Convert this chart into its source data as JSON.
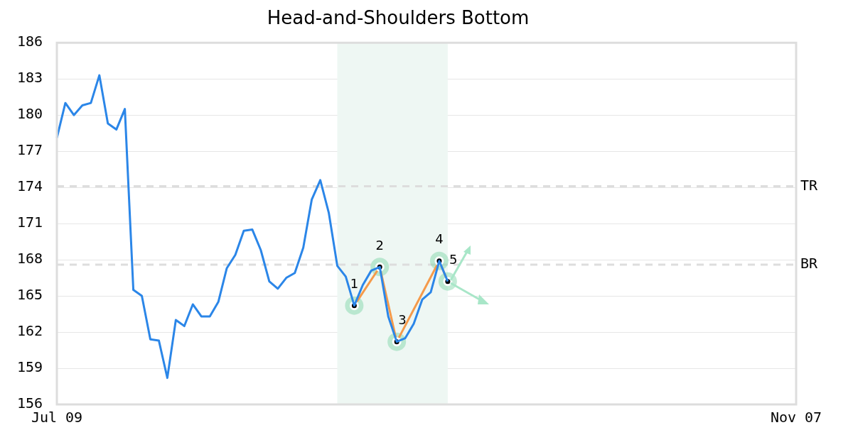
{
  "chart_data": {
    "type": "line",
    "title": "Head-and-Shoulders Bottom",
    "categories": [
      "Jul 09",
      null,
      null,
      null,
      null,
      null,
      null,
      null,
      null,
      null,
      null,
      null,
      null,
      null,
      null,
      null,
      null,
      null,
      null,
      null,
      null,
      null,
      null,
      null,
      null,
      null,
      null,
      null,
      null,
      null,
      null,
      null,
      null,
      null,
      null,
      null,
      null,
      null,
      null,
      null,
      null,
      null,
      null,
      null,
      null,
      null,
      null,
      null,
      null,
      null,
      null,
      null,
      null,
      null,
      null,
      null,
      null,
      null,
      null,
      null,
      null,
      null,
      null,
      null,
      null,
      null,
      null,
      null,
      null,
      null,
      null,
      null,
      null,
      null,
      null,
      null,
      null,
      null,
      null,
      null,
      null,
      null,
      null,
      null,
      null,
      null,
      null,
      "Nov 07"
    ],
    "ylim": [
      156,
      186
    ],
    "yticks": [
      156,
      159,
      162,
      165,
      168,
      171,
      174,
      177,
      180,
      183,
      186
    ],
    "grid": "y",
    "legend": false,
    "series": [
      {
        "color": "#2b86e8",
        "marker": "none",
        "values": [
          178.1,
          181.0,
          180.0,
          180.8,
          181.0,
          183.3,
          179.3,
          178.8,
          180.5,
          165.5,
          165.0,
          161.4,
          161.3,
          158.2,
          163.0,
          162.5,
          164.3,
          163.3,
          163.3,
          164.5,
          167.3,
          168.4,
          170.4,
          170.5,
          168.8,
          166.2,
          165.6,
          166.5,
          166.9,
          169.0,
          173.0,
          174.6,
          171.9,
          167.5,
          166.6,
          164.2,
          165.9,
          167.1,
          167.4,
          163.3,
          161.2,
          161.5,
          162.7,
          164.7,
          165.3,
          167.9,
          166.2,
          null,
          null,
          null,
          null,
          null,
          null,
          null,
          null,
          null,
          null,
          null,
          null,
          null,
          null,
          null,
          null,
          null,
          null,
          null,
          null,
          null,
          null,
          null,
          null,
          null,
          null,
          null,
          null,
          null,
          null,
          null,
          null,
          null,
          null,
          null,
          null,
          null,
          null,
          null,
          null,
          null
        ]
      },
      {
        "color": "#f59a4a",
        "marker": "circle",
        "values": [
          null,
          null,
          null,
          null,
          null,
          null,
          null,
          null,
          null,
          null,
          null,
          null,
          null,
          null,
          null,
          null,
          null,
          null,
          null,
          null,
          null,
          null,
          null,
          null,
          null,
          null,
          null,
          null,
          null,
          null,
          null,
          null,
          null,
          null,
          null,
          164.2,
          null,
          null,
          167.4,
          null,
          161.2,
          null,
          null,
          null,
          null,
          167.9,
          166.2,
          null,
          null,
          null,
          null,
          null,
          null,
          null,
          null,
          null,
          null,
          null,
          null,
          null,
          null,
          null,
          null,
          null,
          null,
          null,
          null,
          null,
          null,
          null,
          null,
          null,
          null,
          null,
          null,
          null,
          null,
          null,
          null,
          null,
          null,
          null,
          null,
          null,
          null,
          null,
          null,
          null
        ]
      }
    ],
    "annotations": [
      {
        "text": "1",
        "y": 164.2
      },
      {
        "text": "2",
        "y": 167.4
      },
      {
        "text": "3",
        "y": 161.2
      },
      {
        "text": "4",
        "y": 167.9
      },
      {
        "text": "5",
        "y": 166.2
      }
    ],
    "ref_lines": [
      {
        "axis": "y",
        "value": 174.1,
        "label": "TR",
        "color": "#dddddd",
        "line_style": "dashed"
      },
      {
        "axis": "y",
        "value": 167.6,
        "label": "BR",
        "color": "#dddddd",
        "line_style": "dashed"
      }
    ]
  }
}
